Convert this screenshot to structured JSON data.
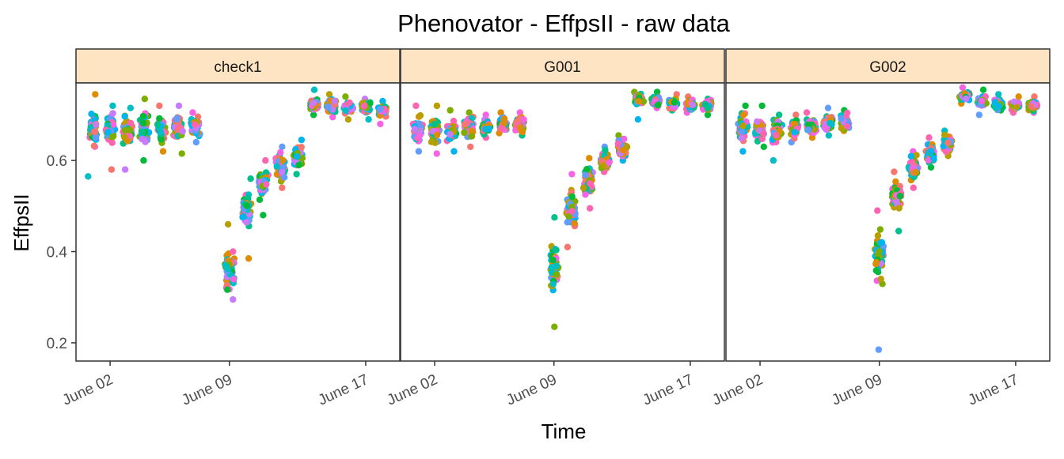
{
  "chart_data": {
    "type": "scatter",
    "title": "Phenovator - EffpsII - raw data",
    "xlabel": "Time",
    "ylabel": "EffpsII",
    "y_ticks": [
      0.2,
      0.4,
      0.6
    ],
    "ylim": [
      0.16,
      0.77
    ],
    "x_ticks": [
      "2018-06-02",
      "2018-06-09",
      "2018-06-17"
    ],
    "x_tick_labels": [
      "June 02",
      "June 09",
      "June 17"
    ],
    "xlim": [
      "2018-05-31",
      "2018-06-19"
    ],
    "grid": false,
    "legend": "none",
    "palette": [
      "#F8766D",
      "#DE8C00",
      "#B79F00",
      "#7CAE00",
      "#00BA38",
      "#00C08B",
      "#00BFC4",
      "#00B4F0",
      "#619CFF",
      "#C77CFF",
      "#F564E3",
      "#FF64B0"
    ],
    "panels": [
      {
        "label": "check1",
        "series": [
          {
            "date": "2018-06-01",
            "center": 0.67,
            "spread": 0.035,
            "min": 0.565,
            "max": 0.745
          },
          {
            "date": "2018-06-02",
            "center": 0.67,
            "spread": 0.03,
            "min": 0.58,
            "max": 0.72
          },
          {
            "date": "2018-06-03",
            "center": 0.665,
            "spread": 0.03,
            "min": 0.58,
            "max": 0.715
          },
          {
            "date": "2018-06-04",
            "center": 0.67,
            "spread": 0.03,
            "min": 0.6,
            "max": 0.735
          },
          {
            "date": "2018-06-05",
            "center": 0.67,
            "spread": 0.025,
            "min": 0.62,
            "max": 0.72
          },
          {
            "date": "2018-06-06",
            "center": 0.675,
            "spread": 0.025,
            "min": 0.615,
            "max": 0.72
          },
          {
            "date": "2018-06-07",
            "center": 0.675,
            "spread": 0.02,
            "min": 0.64,
            "max": 0.705
          },
          {
            "date": "2018-06-09",
            "center": 0.36,
            "spread": 0.04,
            "min": 0.295,
            "max": 0.46
          },
          {
            "date": "2018-06-10",
            "center": 0.49,
            "spread": 0.035,
            "min": 0.385,
            "max": 0.56
          },
          {
            "date": "2018-06-11",
            "center": 0.55,
            "spread": 0.025,
            "min": 0.48,
            "max": 0.6
          },
          {
            "date": "2018-06-12",
            "center": 0.585,
            "spread": 0.025,
            "min": 0.54,
            "max": 0.63
          },
          {
            "date": "2018-06-13",
            "center": 0.605,
            "spread": 0.02,
            "min": 0.57,
            "max": 0.645
          },
          {
            "date": "2018-06-14",
            "center": 0.725,
            "spread": 0.012,
            "min": 0.7,
            "max": 0.755
          },
          {
            "date": "2018-06-15",
            "center": 0.72,
            "spread": 0.012,
            "min": 0.695,
            "max": 0.745
          },
          {
            "date": "2018-06-16",
            "center": 0.715,
            "spread": 0.012,
            "min": 0.69,
            "max": 0.74
          },
          {
            "date": "2018-06-17",
            "center": 0.715,
            "spread": 0.012,
            "min": 0.69,
            "max": 0.735
          },
          {
            "date": "2018-06-18",
            "center": 0.71,
            "spread": 0.012,
            "min": 0.68,
            "max": 0.73
          }
        ]
      },
      {
        "label": "G001",
        "series": [
          {
            "date": "2018-06-01",
            "center": 0.67,
            "spread": 0.022,
            "min": 0.62,
            "max": 0.72
          },
          {
            "date": "2018-06-02",
            "center": 0.665,
            "spread": 0.022,
            "min": 0.615,
            "max": 0.72
          },
          {
            "date": "2018-06-03",
            "center": 0.665,
            "spread": 0.02,
            "min": 0.62,
            "max": 0.71
          },
          {
            "date": "2018-06-04",
            "center": 0.67,
            "spread": 0.018,
            "min": 0.63,
            "max": 0.705
          },
          {
            "date": "2018-06-05",
            "center": 0.675,
            "spread": 0.015,
            "min": 0.65,
            "max": 0.7
          },
          {
            "date": "2018-06-06",
            "center": 0.68,
            "spread": 0.013,
            "min": 0.66,
            "max": 0.705
          },
          {
            "date": "2018-06-07",
            "center": 0.68,
            "spread": 0.013,
            "min": 0.655,
            "max": 0.705
          },
          {
            "date": "2018-06-09",
            "center": 0.37,
            "spread": 0.045,
            "min": 0.235,
            "max": 0.475
          },
          {
            "date": "2018-06-10",
            "center": 0.49,
            "spread": 0.045,
            "min": 0.41,
            "max": 0.57
          },
          {
            "date": "2018-06-11",
            "center": 0.55,
            "spread": 0.03,
            "min": 0.495,
            "max": 0.605
          },
          {
            "date": "2018-06-12",
            "center": 0.6,
            "spread": 0.02,
            "min": 0.575,
            "max": 0.63
          },
          {
            "date": "2018-06-13",
            "center": 0.625,
            "spread": 0.018,
            "min": 0.6,
            "max": 0.655
          },
          {
            "date": "2018-06-14",
            "center": 0.735,
            "spread": 0.01,
            "min": 0.69,
            "max": 0.75
          },
          {
            "date": "2018-06-15",
            "center": 0.73,
            "spread": 0.01,
            "min": 0.715,
            "max": 0.75
          },
          {
            "date": "2018-06-16",
            "center": 0.725,
            "spread": 0.01,
            "min": 0.71,
            "max": 0.745
          },
          {
            "date": "2018-06-17",
            "center": 0.72,
            "spread": 0.01,
            "min": 0.705,
            "max": 0.74
          },
          {
            "date": "2018-06-18",
            "center": 0.72,
            "spread": 0.01,
            "min": 0.7,
            "max": 0.735
          }
        ]
      },
      {
        "label": "G002",
        "series": [
          {
            "date": "2018-06-01",
            "center": 0.67,
            "spread": 0.025,
            "min": 0.62,
            "max": 0.72
          },
          {
            "date": "2018-06-02",
            "center": 0.665,
            "spread": 0.022,
            "min": 0.63,
            "max": 0.72
          },
          {
            "date": "2018-06-03",
            "center": 0.665,
            "spread": 0.022,
            "min": 0.6,
            "max": 0.7
          },
          {
            "date": "2018-06-04",
            "center": 0.67,
            "spread": 0.018,
            "min": 0.64,
            "max": 0.7
          },
          {
            "date": "2018-06-05",
            "center": 0.675,
            "spread": 0.015,
            "min": 0.65,
            "max": 0.705
          },
          {
            "date": "2018-06-06",
            "center": 0.68,
            "spread": 0.015,
            "min": 0.655,
            "max": 0.715
          },
          {
            "date": "2018-06-07",
            "center": 0.685,
            "spread": 0.015,
            "min": 0.665,
            "max": 0.71
          },
          {
            "date": "2018-06-09",
            "center": 0.39,
            "spread": 0.05,
            "min": 0.185,
            "max": 0.49
          },
          {
            "date": "2018-06-10",
            "center": 0.52,
            "spread": 0.035,
            "min": 0.445,
            "max": 0.575
          },
          {
            "date": "2018-06-11",
            "center": 0.58,
            "spread": 0.025,
            "min": 0.54,
            "max": 0.62
          },
          {
            "date": "2018-06-12",
            "center": 0.615,
            "spread": 0.02,
            "min": 0.585,
            "max": 0.65
          },
          {
            "date": "2018-06-13",
            "center": 0.635,
            "spread": 0.018,
            "min": 0.61,
            "max": 0.665
          },
          {
            "date": "2018-06-14",
            "center": 0.74,
            "spread": 0.01,
            "min": 0.725,
            "max": 0.76
          },
          {
            "date": "2018-06-15",
            "center": 0.73,
            "spread": 0.01,
            "min": 0.7,
            "max": 0.755
          },
          {
            "date": "2018-06-16",
            "center": 0.725,
            "spread": 0.01,
            "min": 0.71,
            "max": 0.745
          },
          {
            "date": "2018-06-17",
            "center": 0.72,
            "spread": 0.01,
            "min": 0.705,
            "max": 0.74
          },
          {
            "date": "2018-06-18",
            "center": 0.72,
            "spread": 0.01,
            "min": 0.705,
            "max": 0.74
          }
        ]
      }
    ]
  }
}
